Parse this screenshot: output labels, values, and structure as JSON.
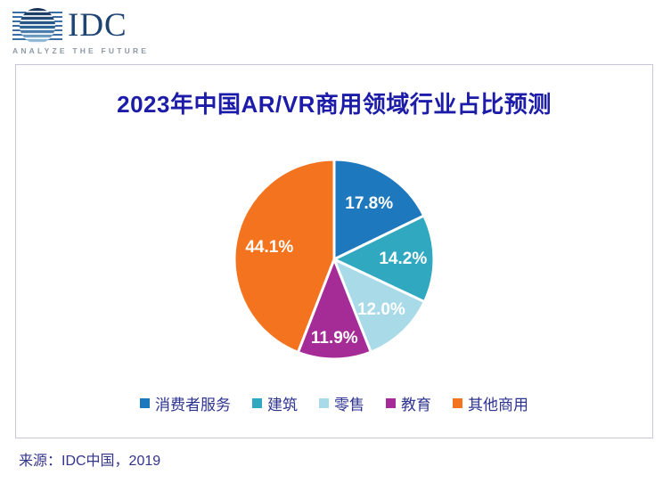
{
  "logo": {
    "name": "IDC",
    "tagline": "ANALYZE THE FUTURE"
  },
  "chart_data": {
    "type": "pie",
    "title": "2023年中国AR/VR商用领域行业占比预测",
    "labels": [
      "消费者服务",
      "建筑",
      "零售",
      "教育",
      "其他商用"
    ],
    "values": [
      17.8,
      14.2,
      12.0,
      11.9,
      44.1
    ],
    "value_labels": [
      "17.8%",
      "14.2%",
      "12.0%",
      "11.9%",
      "44.1%"
    ],
    "colors": [
      "#1e78be",
      "#2fa8c0",
      "#a9dae8",
      "#a52c96",
      "#f3731f"
    ],
    "start_angle_deg": 0,
    "direction": "clockwise",
    "legend_position": "bottom",
    "label_radius_fraction": [
      0.66,
      0.69,
      0.69,
      0.79,
      0.66
    ],
    "label_color": "#ffffff",
    "slice_gap_stroke": "#ffffff"
  },
  "source": {
    "text": "来源：IDC中国，2019"
  },
  "style": {
    "title_color": "#1c1ca8",
    "legend_text_color": "#2d3390",
    "frame_border_color": "#c9c6dc"
  }
}
